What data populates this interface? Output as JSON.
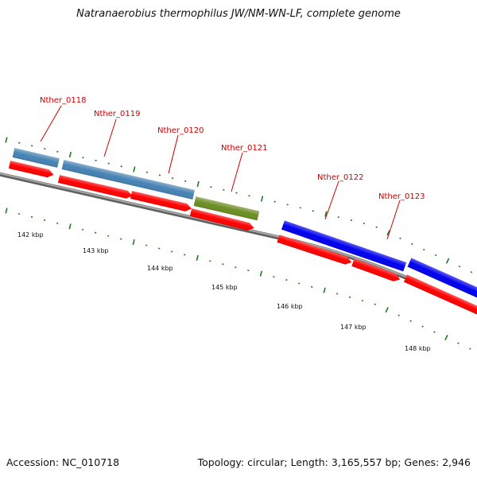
{
  "title": "Natranaerobius thermophilus JW/NM-WN-LF, complete genome",
  "footer": {
    "accession": "Accession: NC_010718",
    "summary": "Topology: circular; Length: 3,165,557 bp; Genes: 2,946"
  },
  "genes": [
    {
      "name": "Nther_0118",
      "color": "#4682b4"
    },
    {
      "name": "Nther_0119",
      "color": "#4682b4"
    },
    {
      "name": "Nther_0120",
      "color": "#4682b4"
    },
    {
      "name": "Nther_0121",
      "color": "#6b8e23"
    },
    {
      "name": "Nther_0122",
      "color": "#0000ee"
    },
    {
      "name": "Nther_0123",
      "color": "#0000ee"
    }
  ],
  "scale_labels": [
    "142 kbp",
    "143 kbp",
    "144 kbp",
    "145 kbp",
    "146 kbp",
    "147 kbp",
    "148 kbp"
  ],
  "colors": {
    "cds": "#ff0000",
    "label_text": "#cc0000",
    "tick": "#1f7a1f",
    "backbone": "#808080"
  }
}
